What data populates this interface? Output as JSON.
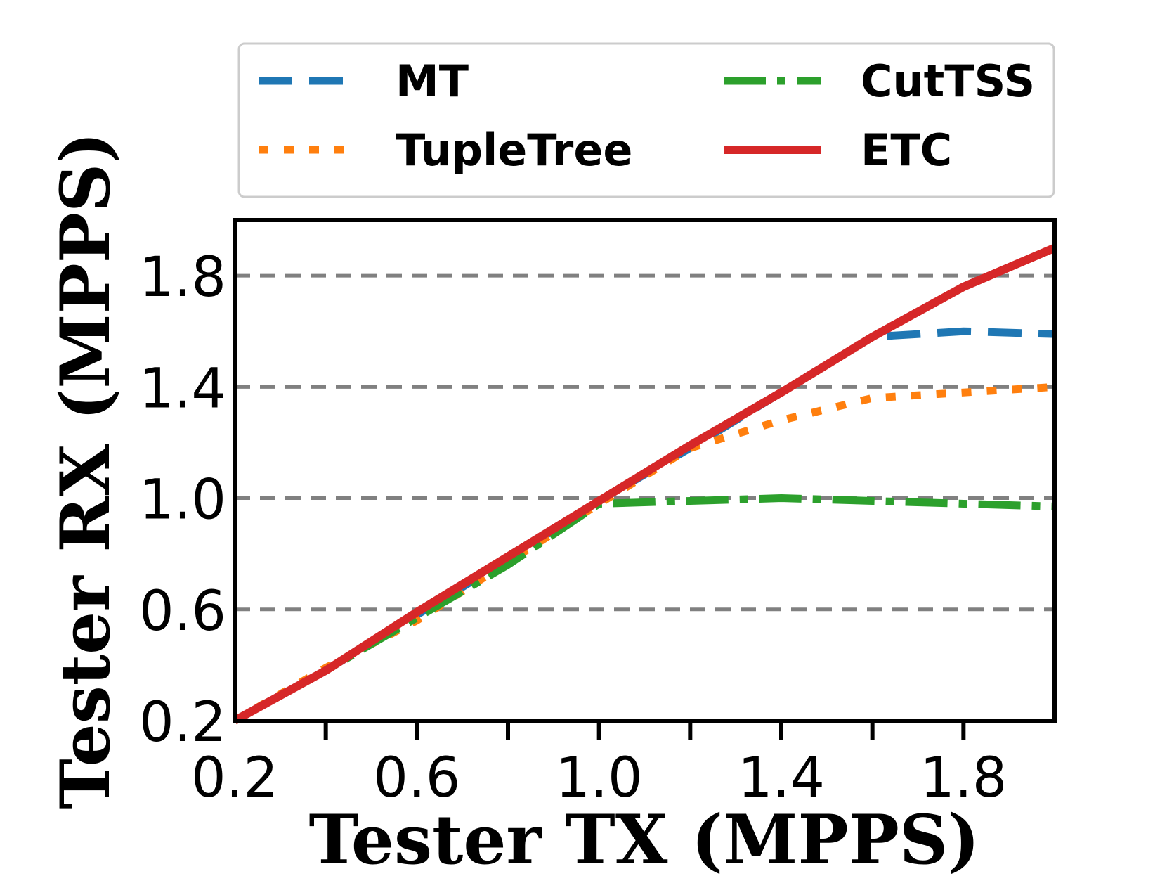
{
  "chart_data": {
    "type": "line",
    "title": "",
    "xlabel": "Tester TX (MPPS)",
    "ylabel": "Tester RX (MPPS)",
    "xlim": [
      0.2,
      2.0
    ],
    "ylim": [
      0.2,
      2.0
    ],
    "xticks": [
      0.2,
      0.4,
      0.6,
      0.8,
      1.0,
      1.2,
      1.4,
      1.6,
      1.8,
      2.0
    ],
    "xtick_labels": [
      "0.2",
      "0.6",
      "1.0",
      "1.4",
      "1.8"
    ],
    "xtick_label_values": [
      0.2,
      0.6,
      1.0,
      1.4,
      1.8
    ],
    "yticks": [
      0.2,
      0.6,
      1.0,
      1.4,
      1.8
    ],
    "ytick_labels": [
      "0.2",
      "0.6",
      "1.0",
      "1.4",
      "1.8"
    ],
    "grid": {
      "axis": "y",
      "style": "dashed",
      "color": "#808080"
    },
    "legend": {
      "position": "top",
      "columns": 2
    },
    "x": [
      0.2,
      0.4,
      0.6,
      0.8,
      1.0,
      1.2,
      1.4,
      1.6,
      1.8,
      2.0
    ],
    "series": [
      {
        "name": "MT",
        "style": "dashed",
        "color": "#1f77b4",
        "values": [
          0.2,
          0.38,
          0.58,
          0.78,
          0.99,
          1.18,
          1.38,
          1.58,
          1.6,
          1.59
        ]
      },
      {
        "name": "TupleTree",
        "style": "dotted",
        "color": "#ff7f0e",
        "values": [
          0.2,
          0.39,
          0.56,
          0.77,
          0.98,
          1.18,
          1.28,
          1.36,
          1.38,
          1.4
        ]
      },
      {
        "name": "CutTSS",
        "style": "dashdot",
        "color": "#2ca02c",
        "values": [
          0.2,
          0.38,
          0.57,
          0.76,
          0.98,
          0.99,
          1.0,
          0.99,
          0.98,
          0.97
        ]
      },
      {
        "name": "ETC",
        "style": "solid",
        "color": "#d62728",
        "values": [
          0.2,
          0.38,
          0.59,
          0.79,
          0.99,
          1.19,
          1.38,
          1.58,
          1.76,
          1.9
        ]
      }
    ]
  }
}
